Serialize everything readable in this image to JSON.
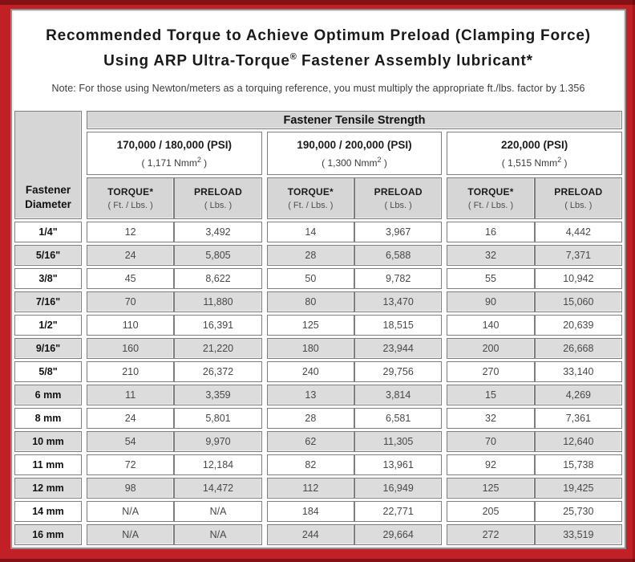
{
  "title": {
    "line1": "Recommended Torque to Achieve Optimum Preload (Clamping Force)",
    "line2_pre": "Using ARP Ultra-Torque",
    "line2_reg": "®",
    "line2_post": " Fastener Assembly lubricant*"
  },
  "note": "Note: For those using Newton/meters as a torquing reference, you must multiply the appropriate ft./lbs. factor by 1.356",
  "table": {
    "tensile_header": "Fastener Tensile Strength",
    "corner": {
      "line1": "Fastener",
      "line2": "Diameter"
    },
    "groups": [
      {
        "psi": "170,000 / 180,000 (PSI)",
        "nmm_open": "( 1,171 Nmm",
        "nmm_sup": "2",
        "nmm_close": " )"
      },
      {
        "psi": "190,000 / 200,000 (PSI)",
        "nmm_open": "( 1,300 Nmm",
        "nmm_sup": "2",
        "nmm_close": " )"
      },
      {
        "psi": "220,000 (PSI)",
        "nmm_open": "( 1,515 Nmm",
        "nmm_sup": "2",
        "nmm_close": " )"
      }
    ],
    "col_headers": {
      "torque": "TORQUE*",
      "torque_unit": "( Ft. / Lbs. )",
      "preload": "PRELOAD",
      "preload_unit": "( Lbs. )"
    },
    "rows": [
      {
        "diameter": "1/4\"",
        "values": [
          "12",
          "3,492",
          "14",
          "3,967",
          "16",
          "4,442"
        ]
      },
      {
        "diameter": "5/16\"",
        "values": [
          "24",
          "5,805",
          "28",
          "6,588",
          "32",
          "7,371"
        ]
      },
      {
        "diameter": "3/8\"",
        "values": [
          "45",
          "8,622",
          "50",
          "9,782",
          "55",
          "10,942"
        ]
      },
      {
        "diameter": "7/16\"",
        "values": [
          "70",
          "11,880",
          "80",
          "13,470",
          "90",
          "15,060"
        ]
      },
      {
        "diameter": "1/2\"",
        "values": [
          "110",
          "16,391",
          "125",
          "18,515",
          "140",
          "20,639"
        ]
      },
      {
        "diameter": "9/16\"",
        "values": [
          "160",
          "21,220",
          "180",
          "23,944",
          "200",
          "26,668"
        ]
      },
      {
        "diameter": "5/8\"",
        "values": [
          "210",
          "26,372",
          "240",
          "29,756",
          "270",
          "33,140"
        ]
      },
      {
        "diameter": "6 mm",
        "values": [
          "11",
          "3,359",
          "13",
          "3,814",
          "15",
          "4,269"
        ]
      },
      {
        "diameter": "8 mm",
        "values": [
          "24",
          "5,801",
          "28",
          "6,581",
          "32",
          "7,361"
        ]
      },
      {
        "diameter": "10 mm",
        "values": [
          "54",
          "9,970",
          "62",
          "11,305",
          "70",
          "12,640"
        ]
      },
      {
        "diameter": "11 mm",
        "values": [
          "72",
          "12,184",
          "82",
          "13,961",
          "92",
          "15,738"
        ]
      },
      {
        "diameter": "12 mm",
        "values": [
          "98",
          "14,472",
          "112",
          "16,949",
          "125",
          "19,425"
        ]
      },
      {
        "diameter": "14 mm",
        "values": [
          "N/A",
          "N/A",
          "184",
          "22,771",
          "205",
          "25,730"
        ]
      },
      {
        "diameter": "16 mm",
        "values": [
          "N/A",
          "N/A",
          "244",
          "29,664",
          "272",
          "33,519"
        ]
      }
    ]
  },
  "colors": {
    "frame_red": "#c02026",
    "frame_edge_dark": "#7c1418",
    "header_gray": "#d6d6d6",
    "row_shade_gray": "#dcdcdc",
    "cell_border_gray": "#7e7e7e",
    "content_border_gray": "#8f8f8f"
  }
}
